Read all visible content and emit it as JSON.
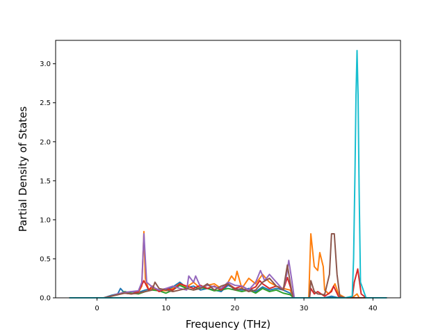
{
  "chart_data": {
    "type": "line",
    "xlabel": "Frequency (THz)",
    "ylabel": "Partial Density of States",
    "xlim": [
      -6,
      44
    ],
    "ylim": [
      0,
      3.3
    ],
    "xticks": [
      0,
      10,
      20,
      30,
      40
    ],
    "yticks": [
      0.0,
      0.5,
      1.0,
      1.5,
      2.0,
      2.5,
      3.0
    ],
    "xtick_labels": [
      "0",
      "10",
      "20",
      "30",
      "40"
    ],
    "ytick_labels": [
      "0.0",
      "0.5",
      "1.0",
      "1.5",
      "2.0",
      "2.5",
      "3.0"
    ],
    "grid": false,
    "legend": "none",
    "series": [
      {
        "color": "#1f77b4",
        "x": [
          -4,
          1,
          2,
          3,
          3.4,
          4,
          5,
          6,
          7,
          8,
          9,
          10,
          11,
          12,
          13,
          14,
          15,
          16,
          17,
          18,
          19,
          20,
          21,
          22,
          23,
          24,
          25,
          26,
          27,
          28,
          28.5,
          29,
          31,
          32,
          33,
          34,
          35,
          36,
          37,
          37.5,
          38,
          39,
          40,
          42
        ],
        "y": [
          0,
          0,
          0.03,
          0.05,
          0.12,
          0.06,
          0.08,
          0.07,
          0.1,
          0.12,
          0.09,
          0.1,
          0.14,
          0.2,
          0.13,
          0.15,
          0.1,
          0.12,
          0.1,
          0.08,
          0.16,
          0.12,
          0.1,
          0.12,
          0.08,
          0.14,
          0.1,
          0.12,
          0.1,
          0.06,
          0,
          0,
          0,
          0,
          0,
          0.02,
          0,
          0,
          0,
          0,
          0,
          0,
          0,
          0
        ]
      },
      {
        "color": "#ff7f0e",
        "x": [
          -4,
          1,
          2,
          3,
          4,
          5,
          6,
          6.5,
          6.8,
          7,
          7.5,
          8,
          9,
          10,
          11,
          12,
          13,
          14,
          15,
          16,
          17,
          18,
          19,
          19.5,
          20,
          20.3,
          21,
          22,
          23,
          24,
          25,
          26,
          27,
          28,
          28.5,
          29,
          30.7,
          31,
          31.5,
          32,
          32.3,
          32.8,
          33,
          33.6,
          34,
          34.5,
          35,
          36,
          37,
          37.7,
          38,
          39,
          42
        ],
        "y": [
          0,
          0,
          0.02,
          0.04,
          0.06,
          0.05,
          0.07,
          0.15,
          0.85,
          0.25,
          0.1,
          0.12,
          0.1,
          0.09,
          0.12,
          0.18,
          0.14,
          0.2,
          0.12,
          0.16,
          0.18,
          0.12,
          0.2,
          0.28,
          0.22,
          0.34,
          0.12,
          0.25,
          0.18,
          0.3,
          0.2,
          0.15,
          0.12,
          0.1,
          0,
          0,
          0,
          0.82,
          0.4,
          0.35,
          0.58,
          0.4,
          0.1,
          0.05,
          0.1,
          0.18,
          0.05,
          0,
          0,
          0.05,
          0,
          0,
          0
        ]
      },
      {
        "color": "#2ca02c",
        "x": [
          -4,
          1,
          2,
          3,
          4,
          5,
          6,
          7,
          8,
          9,
          10,
          11,
          12,
          13,
          14,
          15,
          16,
          17,
          18,
          19,
          20,
          21,
          22,
          23,
          24,
          25,
          26,
          27,
          28,
          28.5,
          29,
          42
        ],
        "y": [
          0,
          0,
          0.02,
          0.04,
          0.08,
          0.06,
          0.05,
          0.08,
          0.1,
          0.09,
          0.06,
          0.1,
          0.16,
          0.12,
          0.1,
          0.13,
          0.12,
          0.09,
          0.1,
          0.12,
          0.1,
          0.08,
          0.1,
          0.06,
          0.12,
          0.08,
          0.1,
          0.06,
          0.04,
          0,
          0,
          0
        ]
      },
      {
        "color": "#d62728",
        "x": [
          -4,
          1,
          2,
          3,
          4,
          5,
          6,
          6.8,
          7.5,
          8,
          9,
          10,
          11,
          12,
          13,
          14,
          15,
          16,
          17,
          18,
          19,
          20,
          21,
          22,
          23,
          23.6,
          24,
          25,
          26,
          27,
          27.6,
          28,
          28.5,
          29,
          30.8,
          31,
          31.5,
          32,
          33,
          34,
          34.3,
          35,
          36,
          37,
          37.3,
          37.8,
          38.3,
          39,
          42
        ],
        "y": [
          0,
          0,
          0.02,
          0.05,
          0.06,
          0.05,
          0.08,
          0.22,
          0.1,
          0.15,
          0.08,
          0.12,
          0.1,
          0.18,
          0.15,
          0.12,
          0.16,
          0.12,
          0.15,
          0.1,
          0.18,
          0.12,
          0.15,
          0.1,
          0.14,
          0.22,
          0.18,
          0.12,
          0.15,
          0.1,
          0.26,
          0.15,
          0,
          0,
          0,
          0.12,
          0.05,
          0.08,
          0.02,
          0.08,
          0.15,
          0.02,
          0,
          0,
          0.2,
          0.37,
          0.05,
          0,
          0
        ]
      },
      {
        "color": "#9467bd",
        "x": [
          -4,
          1,
          2,
          3,
          4,
          5,
          6,
          6.5,
          6.8,
          7.2,
          8,
          9,
          10,
          11,
          12,
          13,
          13.3,
          14,
          14.3,
          15,
          16,
          17,
          18,
          19,
          20,
          21,
          22,
          23,
          23.7,
          24.3,
          25,
          26,
          27,
          27.5,
          27.8,
          28.2,
          28.6,
          29,
          42
        ],
        "y": [
          0,
          0,
          0.02,
          0.05,
          0.07,
          0.08,
          0.09,
          0.2,
          0.82,
          0.2,
          0.14,
          0.1,
          0.12,
          0.15,
          0.12,
          0.1,
          0.28,
          0.2,
          0.28,
          0.14,
          0.16,
          0.14,
          0.12,
          0.2,
          0.16,
          0.15,
          0.1,
          0.2,
          0.35,
          0.22,
          0.3,
          0.2,
          0.1,
          0.3,
          0.48,
          0.25,
          0,
          0,
          0
        ]
      },
      {
        "color": "#8c564b",
        "x": [
          -4,
          1,
          2,
          3,
          4,
          5,
          6,
          7,
          8,
          8.4,
          9,
          10,
          11,
          12,
          13,
          14,
          15,
          16,
          17,
          18,
          19,
          20,
          21,
          22,
          23,
          24,
          25,
          26,
          27,
          27.6,
          28,
          28.4,
          29,
          30.8,
          31,
          31.5,
          32,
          33,
          33.7,
          34,
          34.4,
          34.8,
          35.2,
          36,
          37,
          38,
          42
        ],
        "y": [
          0,
          0,
          0.02,
          0.04,
          0.06,
          0.05,
          0.06,
          0.08,
          0.1,
          0.2,
          0.12,
          0.1,
          0.08,
          0.1,
          0.12,
          0.1,
          0.12,
          0.18,
          0.1,
          0.15,
          0.18,
          0.1,
          0.12,
          0.08,
          0.1,
          0.2,
          0.25,
          0.15,
          0.1,
          0.42,
          0.2,
          0,
          0,
          0,
          0.22,
          0.08,
          0.05,
          0.04,
          0.3,
          0.82,
          0.82,
          0.3,
          0.02,
          0,
          0,
          0,
          0
        ]
      },
      {
        "color": "#17becf",
        "x": [
          -4,
          30,
          36,
          37,
          37.2,
          37.4,
          37.55,
          37.7,
          37.85,
          38,
          38.2,
          39,
          42
        ],
        "y": [
          0,
          0,
          0,
          0.02,
          0.5,
          1.6,
          2.6,
          3.17,
          2.6,
          1.4,
          0.2,
          0,
          0
        ]
      }
    ]
  }
}
